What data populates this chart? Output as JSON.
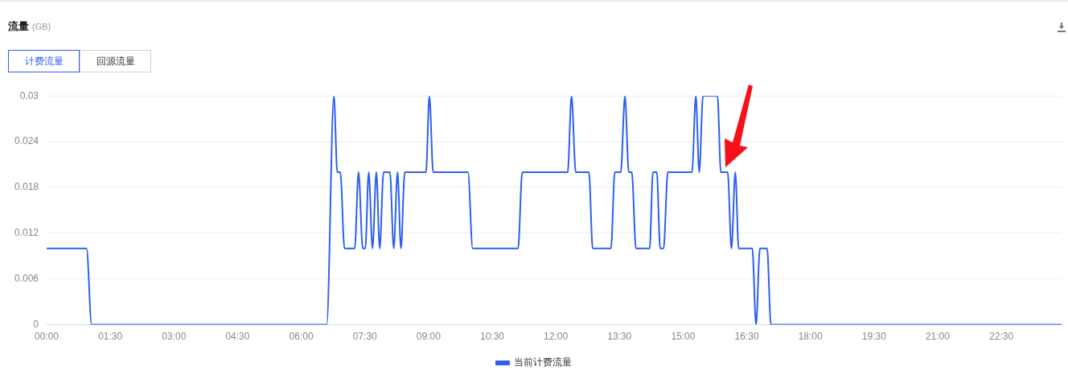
{
  "chart_data": {
    "type": "line",
    "title": "流量",
    "subtitle": "(GB)",
    "annotations": [
      "计费流量",
      "回源流量"
    ],
    "xlim": [
      0,
      23.92
    ],
    "xticks": [
      {
        "value": 0,
        "label": "00:00"
      },
      {
        "value": 1.5,
        "label": "01:30"
      },
      {
        "value": 3,
        "label": "03:00"
      },
      {
        "value": 4.5,
        "label": "04:30"
      },
      {
        "value": 6,
        "label": "06:00"
      },
      {
        "value": 7.5,
        "label": "07:30"
      },
      {
        "value": 9,
        "label": "09:00"
      },
      {
        "value": 10.5,
        "label": "10:30"
      },
      {
        "value": 12,
        "label": "12:00"
      },
      {
        "value": 13.5,
        "label": "13:30"
      },
      {
        "value": 15,
        "label": "15:00"
      },
      {
        "value": 16.5,
        "label": "16:30"
      },
      {
        "value": 18,
        "label": "18:00"
      },
      {
        "value": 19.5,
        "label": "19:30"
      },
      {
        "value": 21,
        "label": "21:00"
      },
      {
        "value": 22.5,
        "label": "22:30"
      }
    ],
    "ylim": [
      0,
      0.03
    ],
    "yticks": [
      0,
      0.006,
      0.012,
      0.018,
      0.024,
      0.03
    ],
    "grid": "y",
    "legend": "bottom",
    "marker": "none",
    "line_style": "solid",
    "series": [
      {
        "name": "当前计费流量",
        "color": "#2f5ff0",
        "x": [
          0,
          0.94,
          1.06,
          6.6,
          6.77,
          6.85,
          6.92,
          7.02,
          7.26,
          7.35,
          7.45,
          7.51,
          7.59,
          7.68,
          7.77,
          7.85,
          7.94,
          8.09,
          8.18,
          8.27,
          8.35,
          8.44,
          8.94,
          9.02,
          9.11,
          9.93,
          10.04,
          11.11,
          11.21,
          12.28,
          12.37,
          12.47,
          12.78,
          12.87,
          13.3,
          13.39,
          13.53,
          13.63,
          13.72,
          13.79,
          13.89,
          14.21,
          14.29,
          14.38,
          14.46,
          14.54,
          14.64,
          15.21,
          15.3,
          15.38,
          15.47,
          15.81,
          15.89,
          16.05,
          16.14,
          16.23,
          16.31,
          16.63,
          16.72,
          16.81,
          16.98,
          17.07,
          23.92
        ],
        "values": [
          0.01,
          0.01,
          0,
          0,
          0.03,
          0.02,
          0.02,
          0.01,
          0.01,
          0.02,
          0.01,
          0.01,
          0.02,
          0.01,
          0.02,
          0.01,
          0.02,
          0.02,
          0.01,
          0.02,
          0.01,
          0.02,
          0.02,
          0.03,
          0.02,
          0.02,
          0.01,
          0.01,
          0.02,
          0.02,
          0.03,
          0.02,
          0.02,
          0.01,
          0.01,
          0.02,
          0.02,
          0.03,
          0.02,
          0.02,
          0.01,
          0.01,
          0.02,
          0.02,
          0.01,
          0.01,
          0.02,
          0.02,
          0.03,
          0.02,
          0.03,
          0.03,
          0.02,
          0.02,
          0.01,
          0.02,
          0.01,
          0.01,
          0,
          0.01,
          0.01,
          0,
          0
        ]
      }
    ]
  }
}
